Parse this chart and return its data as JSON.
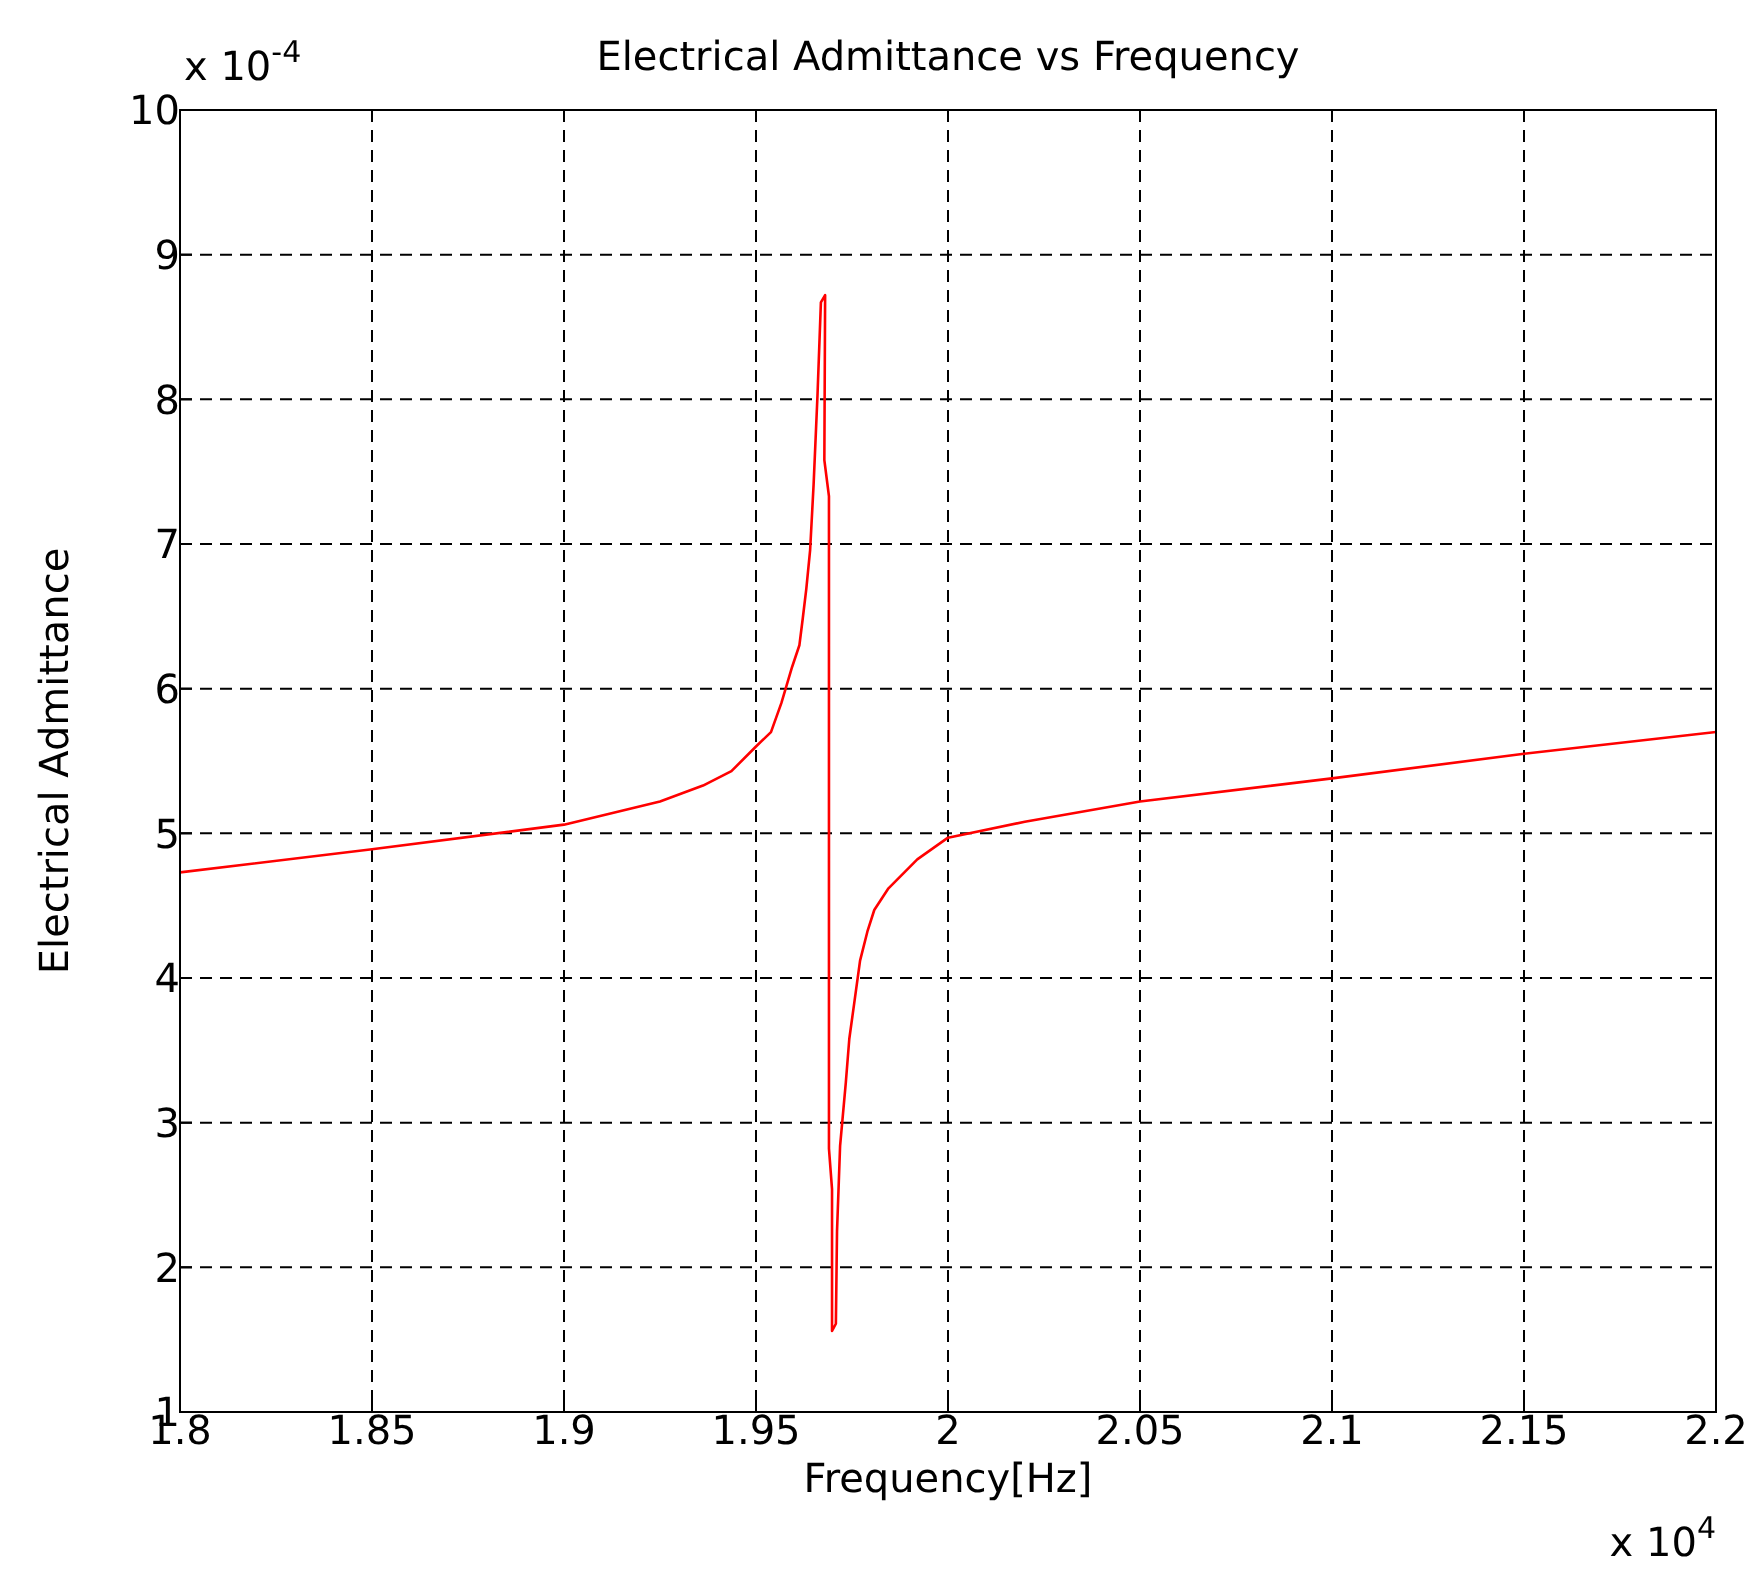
{
  "chart_data": {
    "type": "line",
    "title": "Electrical Admittance vs Frequency",
    "xlabel": "Frequency[Hz]",
    "ylabel": "Electrical Admittance",
    "annotations": [
      "x 10$^{-4}$",
      "x 10$^{4}$"
    ],
    "x": [
      1.8,
      1.85,
      1.9,
      1.925,
      1.9362,
      1.9436,
      1.95,
      1.9539,
      1.9566,
      1.9594,
      1.9613,
      1.9622,
      1.9631,
      1.9641,
      1.965,
      1.966,
      1.9669,
      1.968,
      1.9678,
      1.969,
      1.969,
      1.9698,
      1.9698,
      1.9708,
      1.9711,
      1.9719,
      1.9734,
      1.9743,
      1.9756,
      1.9771,
      1.979,
      1.9808,
      1.9845,
      1.992,
      2.0,
      2.02,
      2.05,
      2.1,
      2.15,
      2.2
    ],
    "series": [
      {
        "color": "#ff0000",
        "values": [
          4.73,
          4.89,
          5.06,
          5.22,
          5.33,
          5.43,
          5.6,
          5.7,
          5.9,
          6.15,
          6.3,
          6.49,
          6.69,
          6.96,
          7.41,
          8.02,
          8.67,
          8.72,
          7.58,
          7.33,
          2.82,
          2.54,
          1.56,
          1.61,
          2.25,
          2.84,
          3.28,
          3.58,
          3.83,
          4.12,
          4.32,
          4.47,
          4.62,
          4.82,
          4.97,
          5.08,
          5.22,
          5.38,
          5.55,
          5.7
        ]
      }
    ],
    "xlim": [
      1.8,
      2.2
    ],
    "xticks": [
      1.8,
      1.85,
      1.9,
      1.95,
      2,
      2.05,
      2.1,
      2.15,
      2.2
    ],
    "ylim": [
      1,
      10
    ],
    "yticks": [
      1,
      2,
      3,
      4,
      5,
      6,
      7,
      8,
      9,
      10
    ],
    "grid": true,
    "line_style": "solid",
    "marker": "none",
    "legend": false
  }
}
